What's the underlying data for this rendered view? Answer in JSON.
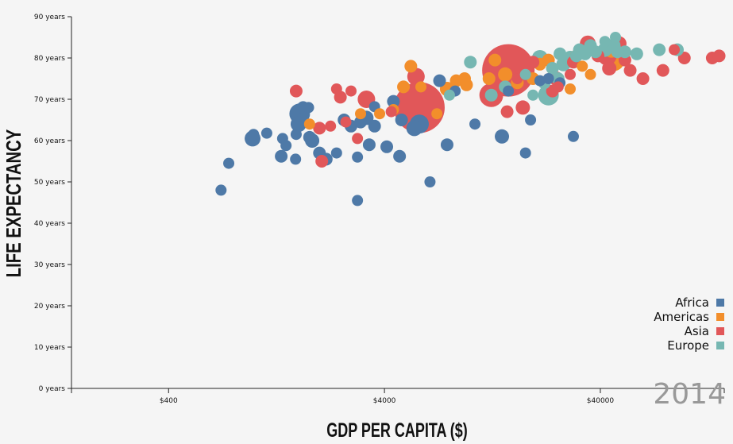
{
  "chart_data": {
    "type": "scatter",
    "title": "",
    "xlabel": "GDP PER CAPITA ($)",
    "ylabel": "LIFE EXPECTANCY",
    "year": "2014",
    "x_scale": "log",
    "xlim": [
      142,
      150000
    ],
    "ylim": [
      0,
      90
    ],
    "x_ticks": [
      {
        "value": 400,
        "label": "$400"
      },
      {
        "value": 4000,
        "label": "$4000"
      },
      {
        "value": 40000,
        "label": "$40000"
      }
    ],
    "y_ticks": [
      {
        "value": 0,
        "label": "0 years"
      },
      {
        "value": 10,
        "label": "10 years"
      },
      {
        "value": 20,
        "label": "20 years"
      },
      {
        "value": 30,
        "label": "30 years"
      },
      {
        "value": 40,
        "label": "40 years"
      },
      {
        "value": 50,
        "label": "50 years"
      },
      {
        "value": 60,
        "label": "60 years"
      },
      {
        "value": 70,
        "label": "70 years"
      },
      {
        "value": 80,
        "label": "80 years"
      },
      {
        "value": 90,
        "label": "90 years"
      }
    ],
    "grid": false,
    "legend_position": "bottom-right",
    "series": [
      {
        "name": "Africa",
        "color": "#4e79a7",
        "points": [
          [
            700,
            48,
            7
          ],
          [
            760,
            54.5,
            7
          ],
          [
            980,
            60.5,
            10
          ],
          [
            990,
            61.5,
            7
          ],
          [
            1140,
            61.8,
            7
          ],
          [
            1350,
            60.5,
            7
          ],
          [
            1330,
            56.2,
            8
          ],
          [
            1400,
            58.8,
            7
          ],
          [
            1550,
            55.5,
            7
          ],
          [
            1560,
            61.5,
            7
          ],
          [
            1600,
            64,
            10
          ],
          [
            1620,
            66.5,
            13
          ],
          [
            1680,
            68,
            8
          ],
          [
            1780,
            68,
            7
          ],
          [
            1800,
            60.8,
            8
          ],
          [
            1850,
            60,
            9
          ],
          [
            2000,
            57,
            8
          ],
          [
            2150,
            55.5,
            8
          ],
          [
            2400,
            57,
            7
          ],
          [
            2600,
            65,
            8
          ],
          [
            2800,
            63.5,
            8
          ],
          [
            3000,
            45.5,
            7
          ],
          [
            3000,
            56,
            7
          ],
          [
            3100,
            64.5,
            8
          ],
          [
            3300,
            65.5,
            9
          ],
          [
            3400,
            59,
            8
          ],
          [
            3600,
            68.2,
            7
          ],
          [
            3600,
            63.5,
            8
          ],
          [
            4100,
            58.5,
            8
          ],
          [
            4400,
            69.5,
            8
          ],
          [
            4700,
            56.2,
            8
          ],
          [
            4800,
            65,
            8
          ],
          [
            5500,
            63,
            10
          ],
          [
            5800,
            64,
            12
          ],
          [
            6500,
            50,
            7
          ],
          [
            7200,
            74.5,
            8
          ],
          [
            7800,
            59,
            8
          ],
          [
            10500,
            64,
            7
          ],
          [
            14000,
            61,
            9
          ],
          [
            18000,
            57,
            7
          ],
          [
            19000,
            65,
            7
          ],
          [
            21000,
            74.5,
            7
          ],
          [
            23000,
            75,
            7
          ],
          [
            26000,
            74,
            7
          ],
          [
            30000,
            61,
            7
          ],
          [
            15000,
            72,
            7
          ],
          [
            8500,
            72,
            7
          ]
        ]
      },
      {
        "name": "Americas",
        "color": "#f28e2b",
        "points": [
          [
            1800,
            64,
            7
          ],
          [
            3100,
            66.5,
            7
          ],
          [
            3800,
            66.5,
            7
          ],
          [
            4400,
            67.5,
            7
          ],
          [
            4900,
            73,
            8
          ],
          [
            5300,
            78,
            8
          ],
          [
            5900,
            73,
            7
          ],
          [
            7000,
            66.5,
            7
          ],
          [
            7800,
            72.5,
            9
          ],
          [
            8600,
            74.5,
            8
          ],
          [
            9400,
            75,
            8
          ],
          [
            9600,
            73.5,
            8
          ],
          [
            12200,
            75,
            8
          ],
          [
            13000,
            79.5,
            8
          ],
          [
            14500,
            76,
            9
          ],
          [
            16500,
            74,
            8
          ],
          [
            19500,
            75,
            8
          ],
          [
            21000,
            78.5,
            8
          ],
          [
            23000,
            79.5,
            8
          ],
          [
            29000,
            72.5,
            7
          ],
          [
            31000,
            80.5,
            8
          ],
          [
            33000,
            78,
            7
          ],
          [
            36000,
            76,
            7
          ],
          [
            46000,
            79.5,
            14
          ],
          [
            45000,
            82,
            10
          ]
        ]
      },
      {
        "name": "Asia",
        "color": "#e15759",
        "points": [
          [
            1560,
            72,
            8
          ],
          [
            2000,
            63,
            8
          ],
          [
            2050,
            55,
            8
          ],
          [
            2250,
            63.5,
            7
          ],
          [
            2400,
            72.5,
            7
          ],
          [
            2500,
            70.5,
            8
          ],
          [
            2650,
            64.5,
            7
          ],
          [
            2800,
            72,
            7
          ],
          [
            3000,
            60.5,
            7
          ],
          [
            3300,
            70,
            11
          ],
          [
            4300,
            67,
            7
          ],
          [
            5600,
            75.5,
            11
          ],
          [
            5800,
            68,
            32
          ],
          [
            12500,
            71,
            15
          ],
          [
            15000,
            77,
            33
          ],
          [
            14800,
            67,
            8
          ],
          [
            16500,
            75,
            7
          ],
          [
            17500,
            68,
            9
          ],
          [
            19500,
            79,
            8
          ],
          [
            24000,
            72,
            8
          ],
          [
            25000,
            75,
            9
          ],
          [
            25500,
            73,
            7
          ],
          [
            35000,
            83.5,
            10
          ],
          [
            39000,
            80.5,
            8
          ],
          [
            43000,
            80.5,
            12
          ],
          [
            44000,
            77.5,
            9
          ],
          [
            49000,
            83.5,
            9
          ],
          [
            52000,
            79.5,
            8
          ],
          [
            55000,
            77,
            8
          ],
          [
            63000,
            75,
            8
          ],
          [
            78000,
            77,
            8
          ],
          [
            88000,
            82,
            7
          ],
          [
            98000,
            80,
            8
          ],
          [
            132000,
            80,
            8
          ],
          [
            142000,
            80.5,
            8
          ],
          [
            29000,
            76,
            7
          ],
          [
            30000,
            79,
            8
          ]
        ]
      },
      {
        "name": "Europe",
        "color": "#76b7b2",
        "points": [
          [
            8000,
            71,
            7
          ],
          [
            10000,
            79,
            8
          ],
          [
            12500,
            71,
            8
          ],
          [
            14500,
            73,
            8
          ],
          [
            18000,
            76,
            7
          ],
          [
            19500,
            71,
            7
          ],
          [
            21000,
            80,
            10
          ],
          [
            22000,
            74,
            8
          ],
          [
            23000,
            71,
            13
          ],
          [
            24000,
            77.5,
            8
          ],
          [
            25500,
            75,
            8
          ],
          [
            26000,
            81,
            8
          ],
          [
            27000,
            78.5,
            9
          ],
          [
            29000,
            80,
            9
          ],
          [
            31000,
            80.5,
            8
          ],
          [
            32000,
            82,
            8
          ],
          [
            34000,
            81,
            8
          ],
          [
            36000,
            83,
            8
          ],
          [
            38000,
            81.5,
            8
          ],
          [
            42000,
            82,
            9
          ],
          [
            46000,
            83,
            9
          ],
          [
            48000,
            81.5,
            8
          ],
          [
            52000,
            81.5,
            8
          ],
          [
            59000,
            81,
            8
          ],
          [
            75000,
            82,
            8
          ],
          [
            91000,
            82,
            8
          ],
          [
            47000,
            85,
            7
          ],
          [
            42000,
            84,
            7
          ]
        ]
      }
    ]
  }
}
